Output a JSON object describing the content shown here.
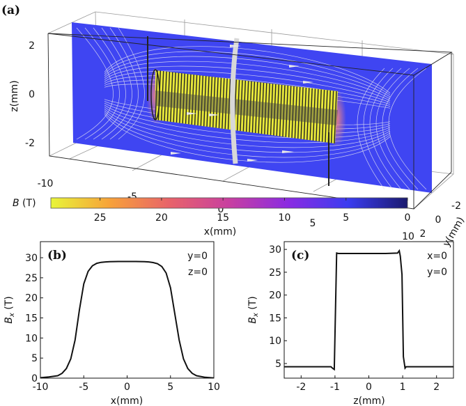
{
  "chart_data": [
    {
      "panel": "(a)",
      "type": "3d-field-plot",
      "xlabel": "x(mm)",
      "ylabel": "y(mm)",
      "zlabel": "z(mm)",
      "x_ticks": [
        "-10",
        "-5",
        "0",
        "5",
        "10"
      ],
      "y_ticks": [
        "-2",
        "0",
        "2"
      ],
      "z_ticks": [
        "2",
        "0",
        "-2"
      ],
      "colorbar": {
        "label_var": "B",
        "label_unit": " (T)",
        "range": [
          0,
          29
        ],
        "ticks": [
          "25",
          "20",
          "15",
          "10",
          "5",
          "0"
        ],
        "tick_values": [
          25,
          20,
          15,
          10,
          5,
          0
        ],
        "colors": [
          "#e8f53a",
          "#f7a13a",
          "#e8636a",
          "#c83fa0",
          "#8a2be2",
          "#3b3cf0",
          "#1a1a6e"
        ]
      },
      "colors": {
        "plane": "#3f45f2",
        "coil": "#e8e83a",
        "field_lines": "#e6e6f0"
      }
    },
    {
      "panel": "(b)",
      "type": "line",
      "xlabel": "x(mm)",
      "ylabel_var": "B",
      "ylabel_sub": "x",
      "ylabel_unit": " (T)",
      "xlim": [
        -10,
        10
      ],
      "ylim": [
        0,
        34
      ],
      "x_ticks": [
        "-10",
        "-5",
        "0",
        "5",
        "10"
      ],
      "y_ticks": [
        "0",
        "5",
        "10",
        "15",
        "20",
        "25",
        "30"
      ],
      "annotations": [
        "y=0",
        "z=0"
      ],
      "x": [
        -10,
        -9,
        -8,
        -7.5,
        -7,
        -6.5,
        -6,
        -5.5,
        -5,
        -4.5,
        -4,
        -3.5,
        -3,
        -2.5,
        -2,
        -1,
        0,
        1,
        2,
        2.5,
        3,
        3.5,
        4,
        4.5,
        5,
        5.5,
        6,
        6.5,
        7,
        7.5,
        8,
        9,
        10
      ],
      "y": [
        0.1,
        0.3,
        0.6,
        1.2,
        2.4,
        4.8,
        9.5,
        17,
        23.5,
        26.6,
        28.0,
        28.6,
        28.85,
        28.95,
        29.0,
        29.05,
        29.05,
        29.05,
        29.0,
        28.95,
        28.8,
        28.5,
        27.8,
        26.2,
        22.5,
        16,
        9.5,
        4.8,
        2.4,
        1.2,
        0.6,
        0.2,
        0.05
      ]
    },
    {
      "panel": "(c)",
      "type": "line",
      "xlabel": "z(mm)",
      "ylabel_var": "B",
      "ylabel_sub": "x",
      "ylabel_unit": " (T)",
      "xlim": [
        -2.5,
        2.5
      ],
      "ylim": [
        1.8,
        31.7
      ],
      "x_ticks": [
        "-2",
        "-1",
        "0",
        "1",
        "2"
      ],
      "y_ticks": [
        "5",
        "10",
        "15",
        "20",
        "25",
        "30"
      ],
      "annotations": [
        "x=0",
        "y=0"
      ],
      "x": [
        -2.5,
        -1.6,
        -1.12,
        -1.06,
        -1.02,
        -0.95,
        -0.9,
        -0.5,
        0,
        0.5,
        0.85,
        0.9,
        0.93,
        0.98,
        1.02,
        1.07,
        1.1,
        1.6,
        2.5
      ],
      "y": [
        4.3,
        4.3,
        4.3,
        3.9,
        3.7,
        29.2,
        29.1,
        29.1,
        29.1,
        29.1,
        29.2,
        29.7,
        28.5,
        24.5,
        6.5,
        4.0,
        4.3,
        4.3,
        4.3
      ]
    }
  ]
}
